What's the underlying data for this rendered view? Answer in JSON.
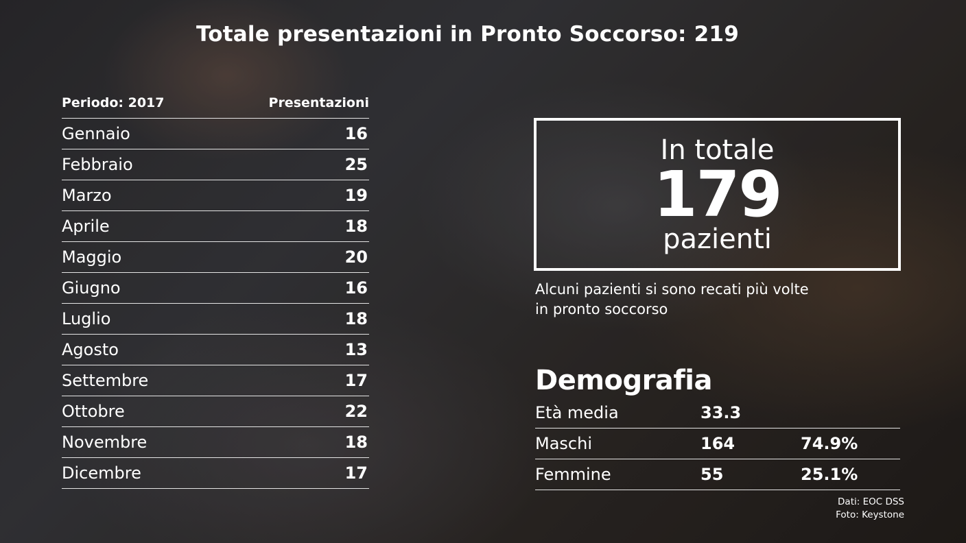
{
  "title": "Totale presentazioni in Pronto Soccorso: 219",
  "months_table": {
    "header_period": "Periodo: 2017",
    "header_value": "Presentazioni"
  },
  "total": {
    "top": "In totale",
    "number": "179",
    "bottom": "pazienti",
    "note_line1": "Alcuni pazienti si sono recati più volte",
    "note_line2": "in pronto soccorso"
  },
  "demografia": {
    "title": "Demografia",
    "rows": [
      {
        "label": "Età media",
        "value": "33.3",
        "pct": ""
      },
      {
        "label": "Maschi",
        "value": "164",
        "pct": "74.9%"
      },
      {
        "label": "Femmine",
        "value": "55",
        "pct": "25.1%"
      }
    ]
  },
  "credits": {
    "data": "Dati: EOC DSS",
    "photo": "Foto: Keystone"
  },
  "chart_data": {
    "type": "table",
    "columns": [
      "Periodo: 2017",
      "Presentazioni"
    ],
    "categories": [
      "Gennaio",
      "Febbraio",
      "Marzo",
      "Aprile",
      "Maggio",
      "Giugno",
      "Luglio",
      "Agosto",
      "Settembre",
      "Ottobre",
      "Novembre",
      "Dicembre"
    ],
    "values": [
      16,
      25,
      19,
      18,
      20,
      16,
      18,
      13,
      17,
      22,
      18,
      17
    ],
    "title": "Totale presentazioni in Pronto Soccorso: 219"
  }
}
